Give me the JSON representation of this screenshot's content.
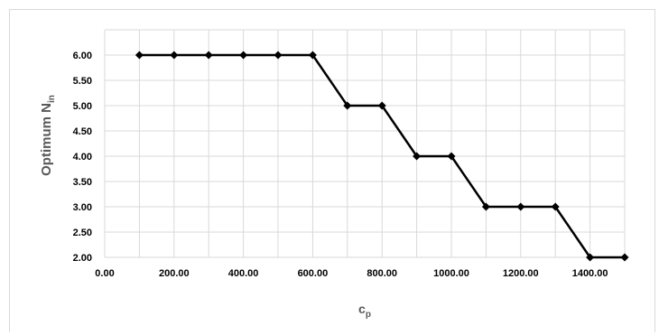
{
  "chart_data": {
    "type": "line",
    "title": "",
    "xlabel": "c",
    "xlabel_sub": "p",
    "ylabel": "Optimum N",
    "ylabel_sub": "in",
    "xlim": [
      0,
      1500
    ],
    "ylim": [
      2,
      6.5
    ],
    "grid": true,
    "x_ticks": [
      "0.00",
      "200.00",
      "400.00",
      "600.00",
      "800.00",
      "1000.00",
      "1200.00",
      "1400.00"
    ],
    "x_tick_values": [
      0,
      200,
      400,
      600,
      800,
      1000,
      1200,
      1400
    ],
    "y_ticks": [
      "2.00",
      "2.50",
      "3.00",
      "3.50",
      "4.00",
      "4.50",
      "5.00",
      "5.50",
      "6.00"
    ],
    "y_tick_values": [
      2,
      2.5,
      3,
      3.5,
      4,
      4.5,
      5,
      5.5,
      6
    ],
    "series": [
      {
        "x": [
          100,
          200,
          300,
          400,
          500,
          600,
          700,
          800,
          900,
          1000,
          1100,
          1200,
          1300,
          1400,
          1500
        ],
        "y": [
          6,
          6,
          6,
          6,
          6,
          6,
          5,
          5,
          4,
          4,
          3,
          3,
          3,
          2,
          2
        ],
        "color": "#000000",
        "marker": "diamond"
      }
    ],
    "colors": {
      "gridline": "#d9d9d9",
      "axis_title": "#595959",
      "text": "#000000"
    }
  }
}
